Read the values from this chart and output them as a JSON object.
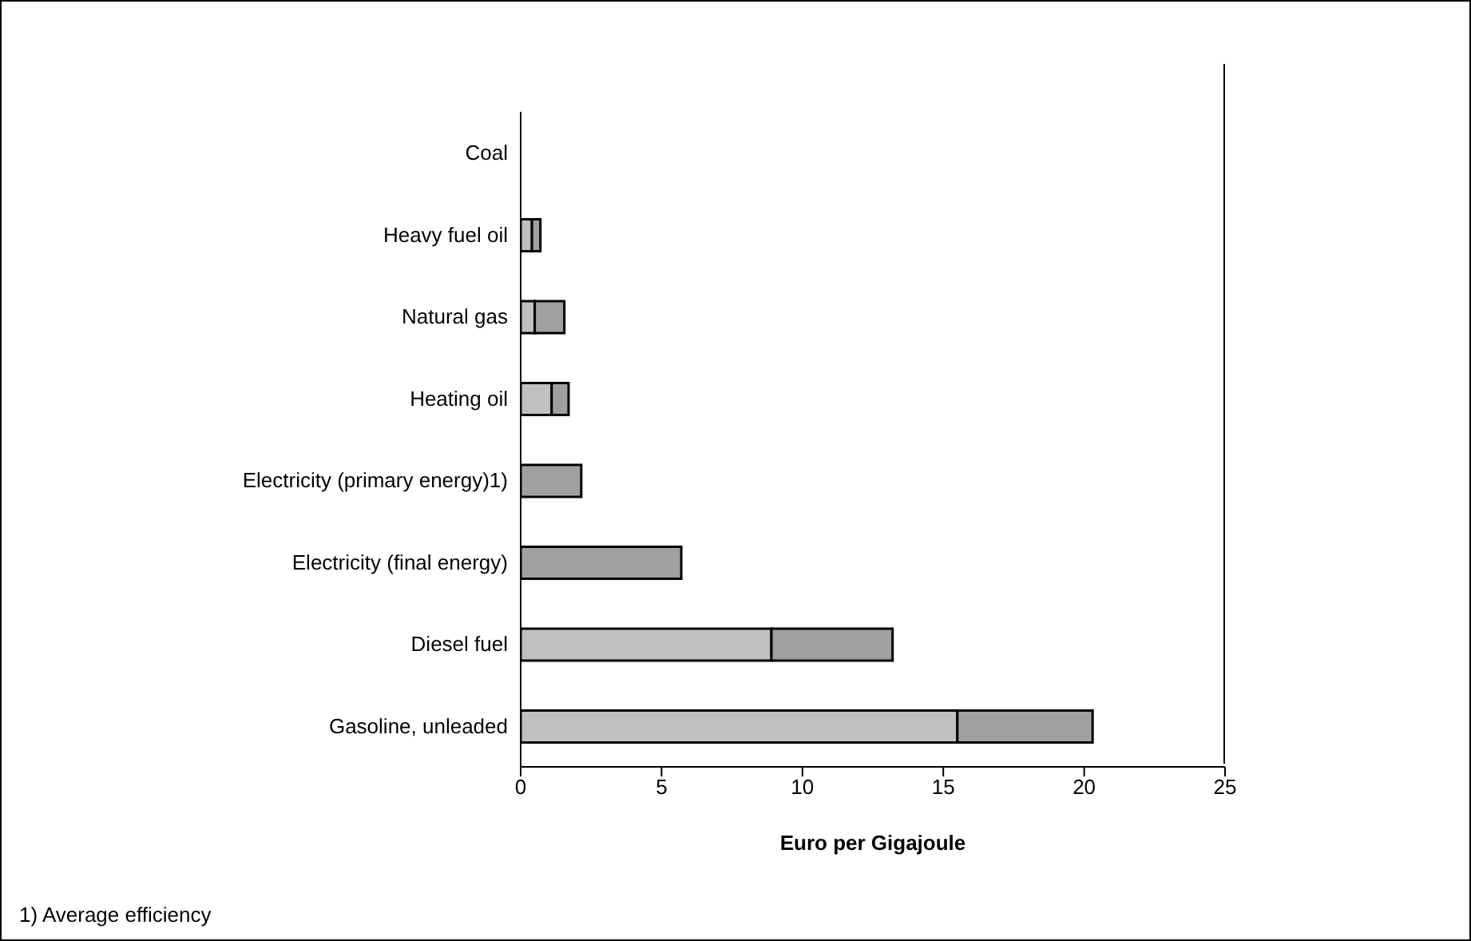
{
  "chart_data": {
    "type": "bar",
    "orientation": "horizontal",
    "stacked": true,
    "xlabel": "Euro per Gigajoule",
    "categories": [
      "Coal",
      "Heavy fuel oil",
      "Natural gas",
      "Heating oil",
      "Electricity (primary energy)1)",
      "Electricity (final energy)",
      "Diesel fuel",
      "Gasoline, unleaded"
    ],
    "series": [
      {
        "color": "#c0c0c0",
        "values": [
          0,
          0.4,
          0.5,
          1.1,
          0,
          0,
          8.9,
          15.5
        ]
      },
      {
        "color": "#a0a0a0",
        "values": [
          0,
          0.3,
          1.05,
          0.6,
          2.15,
          5.7,
          4.3,
          4.8
        ]
      }
    ],
    "xlim": [
      0,
      25
    ],
    "xticks": [
      0,
      5,
      10,
      15,
      20,
      25
    ],
    "grid": false,
    "legend": false,
    "annotations": [
      "1) Average efficiency"
    ]
  }
}
